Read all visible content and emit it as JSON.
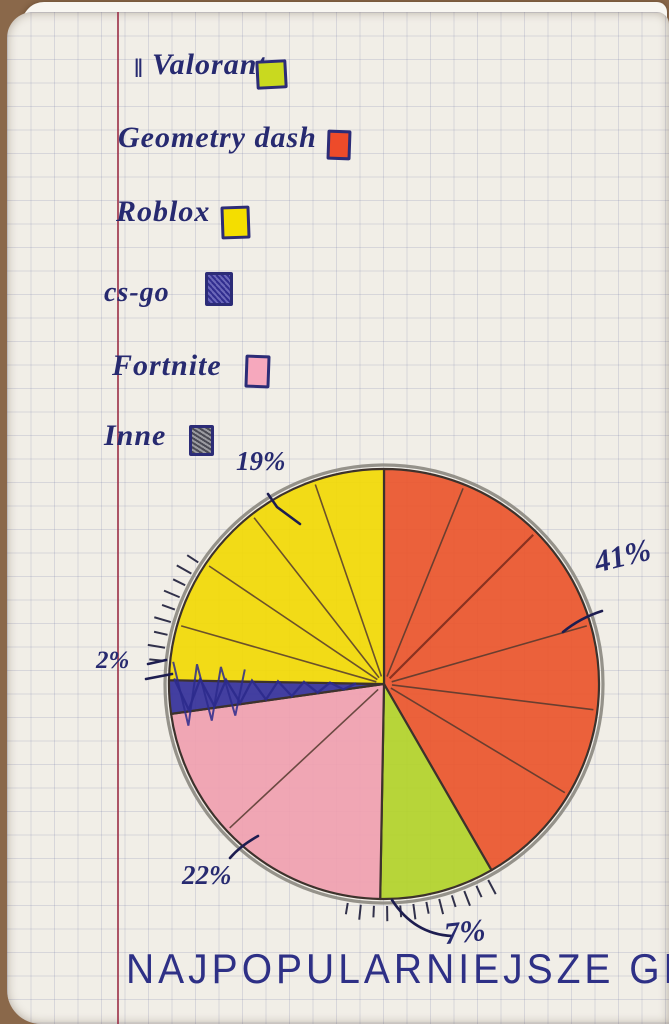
{
  "page": {
    "kind": "hand-drawn pie chart on squared notebook paper",
    "title": "NAJPOPULARNIEJSZE GRY",
    "pen_mark_prefix": "‖",
    "legend": [
      {
        "label": "Valorant",
        "color": "#c9d91f",
        "style": "solid"
      },
      {
        "label": "Geometry dash",
        "color": "#ee4b2a",
        "style": "solid"
      },
      {
        "label": "Roblox",
        "color": "#f4de00",
        "style": "solid"
      },
      {
        "label": "cs-go",
        "color": "#312e8f",
        "style": "scribble"
      },
      {
        "label": "Fortnite",
        "color": "#f6a8bd",
        "style": "solid"
      },
      {
        "label": "Inne",
        "color": "#5a5a64",
        "style": "scribble"
      }
    ]
  },
  "chart_data": {
    "type": "pie",
    "title": "NAJPOPULARNIEJSZE GRY",
    "legend_position": "top-left",
    "segments": [
      {
        "label": "Geometry dash",
        "value_pct": 41,
        "color": "#ea552c",
        "draw_start_cw": 0,
        "draw_end_cw": 150
      },
      {
        "label": "Valorant",
        "value_pct": 7,
        "color": "#b2d32a",
        "draw_start_cw": 150,
        "draw_end_cw": 181
      },
      {
        "label": "Fortnite",
        "value_pct": 22,
        "color": "#f09fb0",
        "draw_start_cw": 181,
        "draw_end_cw": 262
      },
      {
        "label": "cs-go",
        "value_pct": 2,
        "color": "#34309a",
        "draw_start_cw": 262,
        "draw_end_cw": 271
      },
      {
        "label": "Roblox",
        "value_pct": 19,
        "color": "#f2d905",
        "draw_start_cw": 271,
        "draw_end_cw": 360
      }
    ],
    "pct_labels": [
      {
        "id": "roblox",
        "text": "19%"
      },
      {
        "id": "geometry",
        "text": "41%"
      },
      {
        "id": "csgo",
        "text": "2%"
      },
      {
        "id": "fortnite",
        "text": "22%"
      },
      {
        "id": "valorant",
        "text": "7%"
      }
    ],
    "notes": "percentages as written on the drawing; sub-sector spoke lines and outer tally tick marks are decorative pencil strokes"
  }
}
